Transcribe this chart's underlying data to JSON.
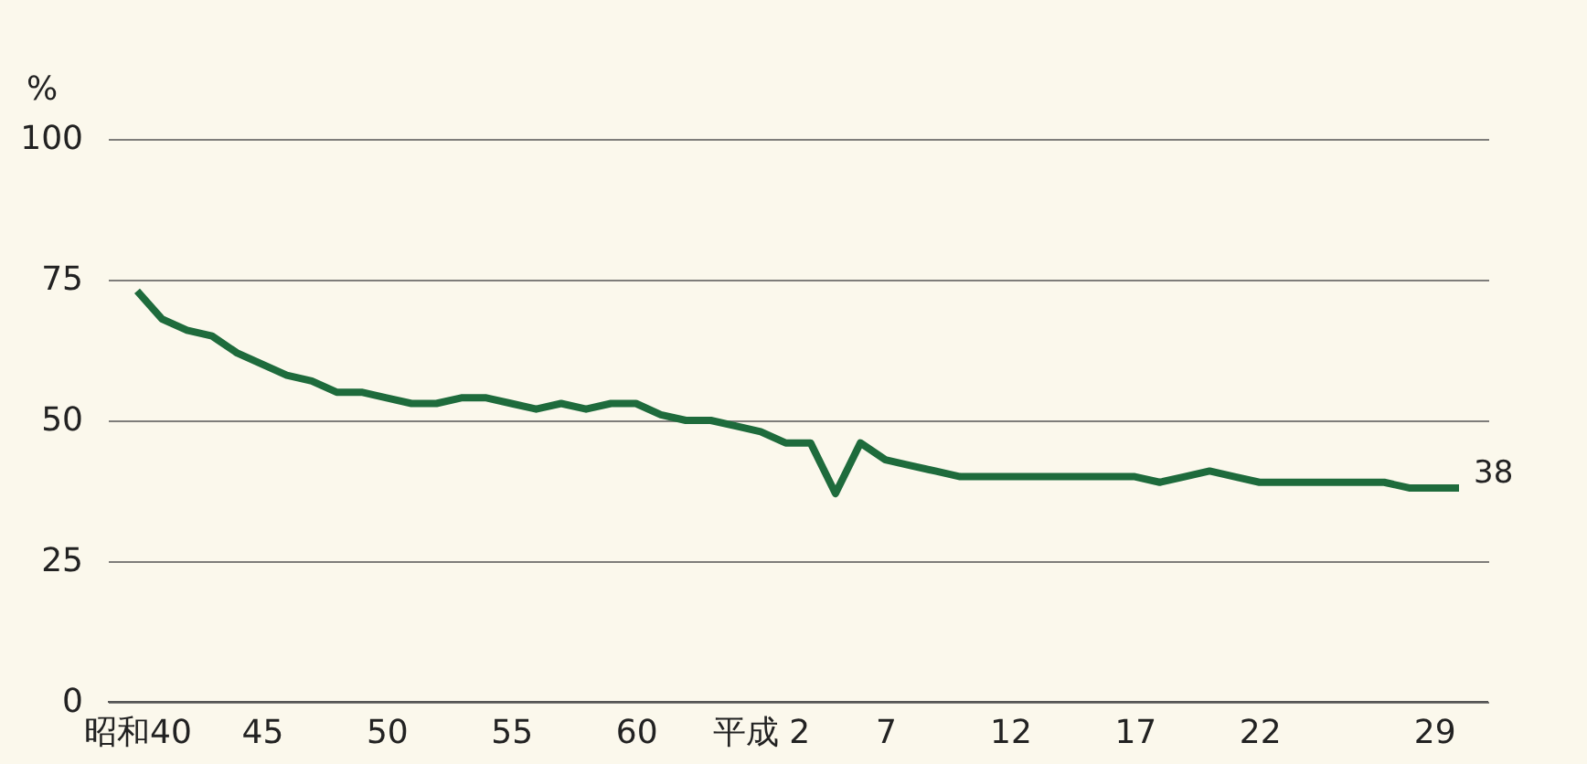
{
  "chart_data": {
    "type": "line",
    "ylabel": "%",
    "categories": [
      "昭和40",
      null,
      null,
      null,
      null,
      "45",
      null,
      null,
      null,
      null,
      "50",
      null,
      null,
      null,
      null,
      "55",
      null,
      null,
      null,
      null,
      "60",
      null,
      null,
      null,
      null,
      "平成 2",
      null,
      null,
      null,
      null,
      "7",
      null,
      null,
      null,
      null,
      "12",
      null,
      null,
      null,
      null,
      "17",
      null,
      null,
      null,
      null,
      "22",
      null,
      null,
      null,
      null,
      null,
      null,
      "29",
      null
    ],
    "series": [
      {
        "color": "#1e6b3c",
        "values": [
          73,
          68,
          66,
          65,
          62,
          60,
          58,
          57,
          55,
          55,
          54,
          53,
          53,
          54,
          54,
          53,
          52,
          53,
          52,
          53,
          53,
          51,
          50,
          50,
          49,
          48,
          46,
          46,
          37,
          46,
          43,
          42,
          41,
          40,
          40,
          40,
          40,
          40,
          40,
          40,
          40,
          39,
          40,
          41,
          40,
          39,
          39,
          39,
          39,
          39,
          39,
          38,
          38,
          38
        ]
      }
    ],
    "ylim": [
      0,
      100
    ],
    "yticks": [
      0,
      25,
      50,
      75,
      100
    ],
    "grid": "y",
    "marker": "none",
    "line_style": "solid",
    "annotations": [
      "38"
    ]
  }
}
